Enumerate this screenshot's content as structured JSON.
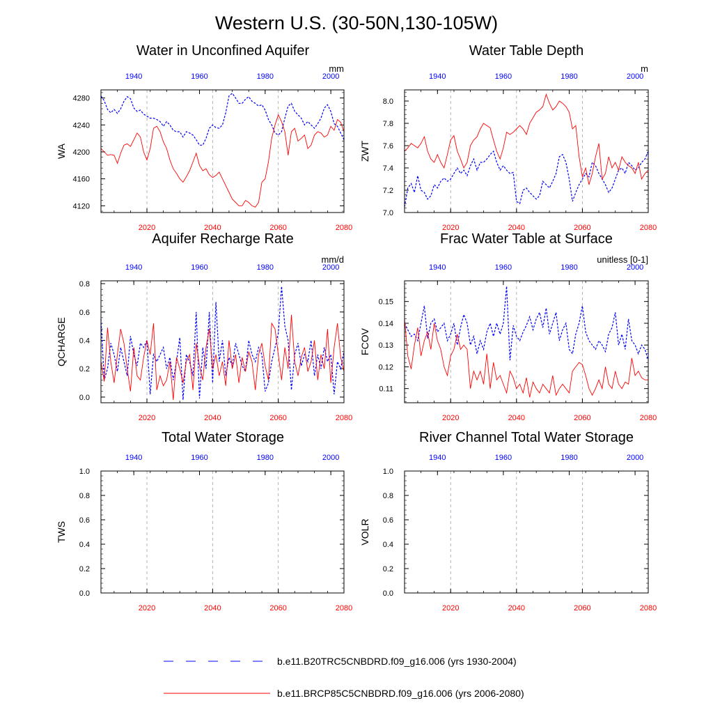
{
  "title": "Western U.S. (30-50N,130-105W)",
  "colors": {
    "series1": "#0000ff",
    "series2": "#ff0000",
    "grid": "#a0a0a0",
    "axis": "#000000"
  },
  "legend": {
    "items": [
      {
        "label": "b.e11.B20TRC5CNBDRD.f09_g16.006 (yrs 1930-2004)",
        "style": "dashed",
        "color": "#0000ff"
      },
      {
        "label": "b.e11.BRCP85C5CNBDRD.f09_g16.006 (yrs 2006-2080)",
        "style": "solid",
        "color": "#ff0000"
      }
    ]
  },
  "chart_data": [
    {
      "id": "wa",
      "type": "line",
      "title": "Water in Unconfined Aquifer",
      "units": "mm",
      "ylabel": "WA",
      "ylim": [
        4110,
        4292
      ],
      "yticks": [
        4120,
        4160,
        4200,
        4240,
        4280
      ],
      "bottom_axis": {
        "range": [
          2006,
          2080
        ],
        "ticks": [
          2020,
          2040,
          2060,
          2080
        ]
      },
      "top_axis": {
        "range": [
          1930,
          2004
        ],
        "ticks": [
          1940,
          1960,
          1980,
          2000
        ]
      },
      "series": [
        {
          "name": "b.e11.B20TRC5CNBDRD.f09_g16.006 (yrs 1930-2004)",
          "start": 1930,
          "axis": "top",
          "style": "dashed",
          "values": [
            4283,
            4276,
            4263,
            4258,
            4263,
            4257,
            4264,
            4275,
            4282,
            4279,
            4265,
            4260,
            4262,
            4256,
            4253,
            4250,
            4250,
            4248,
            4245,
            4238,
            4245,
            4240,
            4232,
            4230,
            4230,
            4222,
            4230,
            4228,
            4225,
            4218,
            4210,
            4210,
            4220,
            4235,
            4240,
            4236,
            4235,
            4240,
            4258,
            4283,
            4287,
            4280,
            4272,
            4272,
            4278,
            4282,
            4275,
            4272,
            4268,
            4270,
            4262,
            4248,
            4240,
            4228,
            4225,
            4230,
            4250,
            4268,
            4272,
            4260,
            4255,
            4250,
            4240,
            4245,
            4240,
            4235,
            4242,
            4250,
            4265,
            4270,
            4260,
            4242,
            4238,
            4228,
            4218
          ]
        },
        {
          "name": "b.e11.BRCP85C5CNBDRD.f09_g16.006 (yrs 2006-2080)",
          "start": 2006,
          "axis": "bottom",
          "style": "solid",
          "values": [
            4205,
            4200,
            4195,
            4196,
            4195,
            4183,
            4198,
            4210,
            4212,
            4208,
            4218,
            4228,
            4222,
            4200,
            4188,
            4205,
            4235,
            4238,
            4230,
            4215,
            4205,
            4188,
            4175,
            4168,
            4160,
            4155,
            4163,
            4172,
            4185,
            4198,
            4180,
            4172,
            4175,
            4166,
            4162,
            4165,
            4170,
            4160,
            4150,
            4140,
            4130,
            4125,
            4120,
            4120,
            4128,
            4125,
            4120,
            4118,
            4125,
            4155,
            4160,
            4185,
            4220,
            4240,
            4255,
            4245,
            4230,
            4195,
            4230,
            4235,
            4216,
            4220,
            4225,
            4205,
            4210,
            4225,
            4230,
            4228,
            4222,
            4225,
            4238,
            4232,
            4248,
            4244,
            4230
          ]
        }
      ]
    },
    {
      "id": "zwt",
      "type": "line",
      "title": "Water Table Depth",
      "units": "m",
      "ylabel": "ZWT",
      "ylim": [
        7.0,
        8.1
      ],
      "yticks": [
        7.0,
        7.2,
        7.4,
        7.6,
        7.8,
        8.0
      ],
      "bottom_axis": {
        "range": [
          2006,
          2080
        ],
        "ticks": [
          2020,
          2040,
          2060,
          2080
        ]
      },
      "top_axis": {
        "range": [
          1930,
          2004
        ],
        "ticks": [
          1940,
          1960,
          1980,
          2000
        ]
      },
      "series": [
        {
          "name": "b.e11.B20TRC5CNBDRD.f09_g16.006 (yrs 1930-2004)",
          "start": 1930,
          "axis": "top",
          "style": "dashed",
          "values": [
            7.05,
            7.22,
            7.26,
            7.18,
            7.33,
            7.2,
            7.18,
            7.12,
            7.15,
            7.25,
            7.22,
            7.28,
            7.31,
            7.28,
            7.3,
            7.35,
            7.4,
            7.35,
            7.38,
            7.33,
            7.42,
            7.48,
            7.38,
            7.45,
            7.45,
            7.48,
            7.52,
            7.55,
            7.45,
            7.38,
            7.42,
            7.38,
            7.35,
            7.36,
            7.1,
            7.08,
            7.2,
            7.22,
            7.18,
            7.15,
            7.12,
            7.15,
            7.28,
            7.25,
            7.22,
            7.28,
            7.35,
            7.5,
            7.52,
            7.45,
            7.3,
            7.1,
            7.18,
            7.25,
            7.3,
            7.35,
            7.32,
            7.45,
            7.42,
            7.35,
            7.3,
            7.25,
            7.18,
            7.22,
            7.3,
            7.38,
            7.4,
            7.35,
            7.45,
            7.42,
            7.38,
            7.4,
            7.45,
            7.48,
            7.55
          ]
        },
        {
          "name": "b.e11.BRCP85C5CNBDRD.f09_g16.006 (yrs 2006-2080)",
          "start": 2006,
          "axis": "bottom",
          "style": "solid",
          "values": [
            7.55,
            7.58,
            7.62,
            7.6,
            7.58,
            7.62,
            7.68,
            7.55,
            7.48,
            7.45,
            7.52,
            7.45,
            7.4,
            7.52,
            7.65,
            7.69,
            7.55,
            7.48,
            7.4,
            7.45,
            7.6,
            7.65,
            7.68,
            7.75,
            7.8,
            7.78,
            7.76,
            7.65,
            7.55,
            7.48,
            7.58,
            7.72,
            7.7,
            7.72,
            7.75,
            7.78,
            7.75,
            7.7,
            7.8,
            7.85,
            7.9,
            7.92,
            7.95,
            8.06,
            7.98,
            7.92,
            7.95,
            8.0,
            7.98,
            7.95,
            7.9,
            7.75,
            7.78,
            7.5,
            7.32,
            7.4,
            7.25,
            7.35,
            7.5,
            7.62,
            7.3,
            7.35,
            7.5,
            7.4,
            7.45,
            7.38,
            7.5,
            7.45,
            7.42,
            7.4,
            7.35,
            7.45,
            7.3,
            7.35,
            7.38
          ]
        }
      ]
    },
    {
      "id": "qcharge",
      "type": "line",
      "title": "Aquifer Recharge Rate",
      "units": "mm/d",
      "ylabel": "QCHARGE",
      "ylim": [
        -0.04,
        0.82
      ],
      "yticks": [
        0.0,
        0.2,
        0.4,
        0.6,
        0.8
      ],
      "bottom_axis": {
        "range": [
          2006,
          2080
        ],
        "ticks": [
          2020,
          2040,
          2060,
          2080
        ]
      },
      "top_axis": {
        "range": [
          1930,
          2004
        ],
        "ticks": [
          1940,
          1960,
          1980,
          2000
        ]
      },
      "series": [
        {
          "name": "b.e11.B20TRC5CNBDRD.f09_g16.006 (yrs 1930-2004)",
          "start": 1930,
          "axis": "top",
          "style": "dashed",
          "values": [
            0.55,
            0.12,
            0.2,
            0.38,
            0.3,
            0.18,
            0.35,
            0.25,
            0.15,
            0.43,
            0.3,
            0.22,
            0.38,
            0.35,
            0.4,
            0.02,
            0.3,
            0.25,
            0.3,
            0.35,
            0.2,
            0.28,
            0.12,
            0.25,
            0.42,
            -0.02,
            0.3,
            0.25,
            0.15,
            0.6,
            -0.01,
            0.35,
            0.2,
            0.6,
            0.1,
            0.67,
            0.25,
            0.4,
            0.15,
            0.28,
            0.22,
            0.38,
            0.3,
            0.22,
            0.18,
            0.4,
            0.3,
            0.25,
            0.35,
            0.3,
            0.04,
            0.1,
            0.25,
            0.35,
            0.45,
            0.78,
            0.5,
            0.4,
            0.05,
            0.3,
            0.38,
            0.22,
            0.3,
            0.25,
            0.4,
            0.15,
            0.3,
            0.2,
            0.35,
            0.25,
            0.3,
            0.02,
            0.25,
            0.2,
            0.32
          ]
        },
        {
          "name": "b.e11.BRCP85C5CNBDRD.f09_g16.006 (yrs 2006-2080)",
          "start": 2006,
          "axis": "bottom",
          "style": "solid",
          "values": [
            0.25,
            0.11,
            0.49,
            0.25,
            0.1,
            0.3,
            0.48,
            0.38,
            0.2,
            0.04,
            0.35,
            0.15,
            0.12,
            0.28,
            0.4,
            0.3,
            0.52,
            0.05,
            0.15,
            0.08,
            0.12,
            0.25,
            -0.02,
            0.28,
            0.2,
            0.1,
            0.25,
            0.3,
            0.05,
            0.38,
            0.22,
            0.12,
            0.35,
            0.48,
            0.2,
            0.3,
            0.15,
            0.25,
            0.08,
            0.4,
            0.2,
            0.3,
            0.1,
            0.28,
            0.18,
            0.32,
            0.25,
            0.05,
            0.3,
            0.38,
            0.22,
            0.12,
            0.52,
            0.48,
            0.3,
            0.12,
            0.35,
            0.2,
            0.58,
            0.25,
            0.15,
            0.28,
            0.35,
            0.18,
            0.25,
            0.4,
            0.12,
            0.3,
            0.2,
            0.48,
            0.1,
            0.35,
            0.52,
            0.28,
            0.18
          ]
        }
      ]
    },
    {
      "id": "fcov",
      "type": "line",
      "title": "Frac Water Table at Surface",
      "units": "unitless [0-1]",
      "ylabel": "FCOV",
      "ylim": [
        0.1035,
        0.1595
      ],
      "yticks": [
        0.11,
        0.12,
        0.13,
        0.14,
        0.15
      ],
      "bottom_axis": {
        "range": [
          2006,
          2080
        ],
        "ticks": [
          2020,
          2040,
          2060,
          2080
        ]
      },
      "top_axis": {
        "range": [
          1930,
          2004
        ],
        "ticks": [
          1940,
          1960,
          1980,
          2000
        ]
      },
      "series": [
        {
          "name": "b.e11.B20TRC5CNBDRD.f09_g16.006 (yrs 1930-2004)",
          "start": 1930,
          "axis": "top",
          "style": "dashed",
          "values": [
            0.14,
            0.137,
            0.134,
            0.135,
            0.132,
            0.14,
            0.148,
            0.133,
            0.14,
            0.142,
            0.136,
            0.138,
            0.14,
            0.132,
            0.135,
            0.14,
            0.13,
            0.138,
            0.144,
            0.14,
            0.13,
            0.134,
            0.126,
            0.132,
            0.128,
            0.136,
            0.14,
            0.134,
            0.14,
            0.135,
            0.14,
            0.157,
            0.123,
            0.139,
            0.134,
            0.132,
            0.136,
            0.139,
            0.143,
            0.137,
            0.142,
            0.145,
            0.138,
            0.147,
            0.135,
            0.14,
            0.145,
            0.132,
            0.137,
            0.14,
            0.128,
            0.126,
            0.135,
            0.14,
            0.148,
            0.136,
            0.132,
            0.13,
            0.128,
            0.132,
            0.13,
            0.127,
            0.135,
            0.138,
            0.145,
            0.13,
            0.135,
            0.128,
            0.142,
            0.132,
            0.13,
            0.126,
            0.13,
            0.128,
            0.123
          ]
        },
        {
          "name": "b.e11.BRCP85C5CNBDRD.f09_g16.006 (yrs 2006-2080)",
          "start": 2006,
          "axis": "bottom",
          "style": "solid",
          "values": [
            0.142,
            0.125,
            0.119,
            0.13,
            0.138,
            0.125,
            0.132,
            0.136,
            0.128,
            0.14,
            0.132,
            0.128,
            0.12,
            0.116,
            0.125,
            0.128,
            0.135,
            0.128,
            0.13,
            0.128,
            0.11,
            0.118,
            0.114,
            0.118,
            0.112,
            0.126,
            0.11,
            0.122,
            0.114,
            0.116,
            0.112,
            0.108,
            0.118,
            0.115,
            0.11,
            0.112,
            0.108,
            0.115,
            0.106,
            0.113,
            0.11,
            0.108,
            0.112,
            0.11,
            0.108,
            0.116,
            0.107,
            0.11,
            0.112,
            0.11,
            0.108,
            0.118,
            0.12,
            0.122,
            0.121,
            0.116,
            0.11,
            0.107,
            0.11,
            0.114,
            0.11,
            0.12,
            0.112,
            0.11,
            0.118,
            0.112,
            0.11,
            0.113,
            0.112,
            0.124,
            0.116,
            0.118,
            0.115,
            0.114,
            0.114
          ]
        }
      ]
    },
    {
      "id": "tws",
      "type": "line",
      "title": "Total Water Storage",
      "units": "",
      "ylabel": "TWS",
      "ylim": [
        0,
        1
      ],
      "yticks": [
        0.0,
        0.2,
        0.4,
        0.6,
        0.8,
        1.0
      ],
      "bottom_axis": {
        "range": [
          2006,
          2080
        ],
        "ticks": [
          2020,
          2040,
          2060,
          2080
        ]
      },
      "top_axis": {
        "range": [
          1930,
          2004
        ],
        "ticks": [
          1940,
          1960,
          1980,
          2000
        ]
      },
      "series": []
    },
    {
      "id": "volr",
      "type": "line",
      "title": "River Channel Total Water Storage",
      "units": "",
      "ylabel": "VOLR",
      "ylim": [
        0,
        1
      ],
      "yticks": [
        0.0,
        0.2,
        0.4,
        0.6,
        0.8,
        1.0
      ],
      "bottom_axis": {
        "range": [
          2006,
          2080
        ],
        "ticks": [
          2020,
          2040,
          2060,
          2080
        ]
      },
      "top_axis": {
        "range": [
          1930,
          2004
        ],
        "ticks": [
          1940,
          1960,
          1980,
          2000
        ]
      },
      "series": []
    }
  ]
}
